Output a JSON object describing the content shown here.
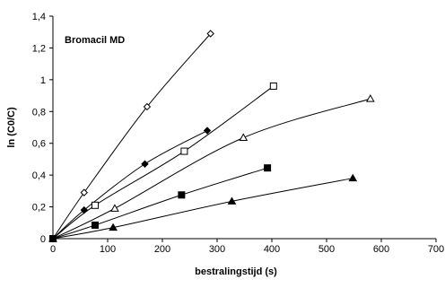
{
  "chart_data": {
    "type": "line",
    "title": "Bromacil MD",
    "xlabel": "bestralingstijd (s)",
    "ylabel": "ln (C0/C)",
    "xlim": [
      0,
      700
    ],
    "ylim": [
      0,
      1.4
    ],
    "x_ticks": [
      "0",
      "100",
      "200",
      "300",
      "400",
      "500",
      "600",
      "700"
    ],
    "y_ticks": [
      "0",
      "0,2",
      "0,4",
      "0,6",
      "0,8",
      "1",
      "1,2",
      "1,4"
    ],
    "grid": false,
    "legend": "none",
    "series": [
      {
        "marker": "diamond-open",
        "points": [
          [
            0,
            0
          ],
          [
            57,
            0.29
          ],
          [
            172,
            0.83
          ],
          [
            288,
            1.29
          ]
        ]
      },
      {
        "marker": "square-open",
        "points": [
          [
            0,
            0
          ],
          [
            77,
            0.21
          ],
          [
            240,
            0.55
          ],
          [
            403,
            0.96
          ]
        ]
      },
      {
        "marker": "triangle-open",
        "points": [
          [
            0,
            0
          ],
          [
            113,
            0.19
          ],
          [
            348,
            0.635
          ],
          [
            580,
            0.88
          ]
        ]
      },
      {
        "marker": "diamond-filled",
        "points": [
          [
            0,
            0
          ],
          [
            57,
            0.18
          ],
          [
            168,
            0.47
          ],
          [
            282,
            0.68
          ]
        ]
      },
      {
        "marker": "square-filled",
        "points": [
          [
            0,
            0
          ],
          [
            77,
            0.085
          ],
          [
            235,
            0.275
          ],
          [
            392,
            0.445
          ]
        ]
      },
      {
        "marker": "triangle-filled",
        "points": [
          [
            0,
            0
          ],
          [
            110,
            0.07
          ],
          [
            327,
            0.235
          ],
          [
            548,
            0.38
          ]
        ]
      }
    ]
  }
}
